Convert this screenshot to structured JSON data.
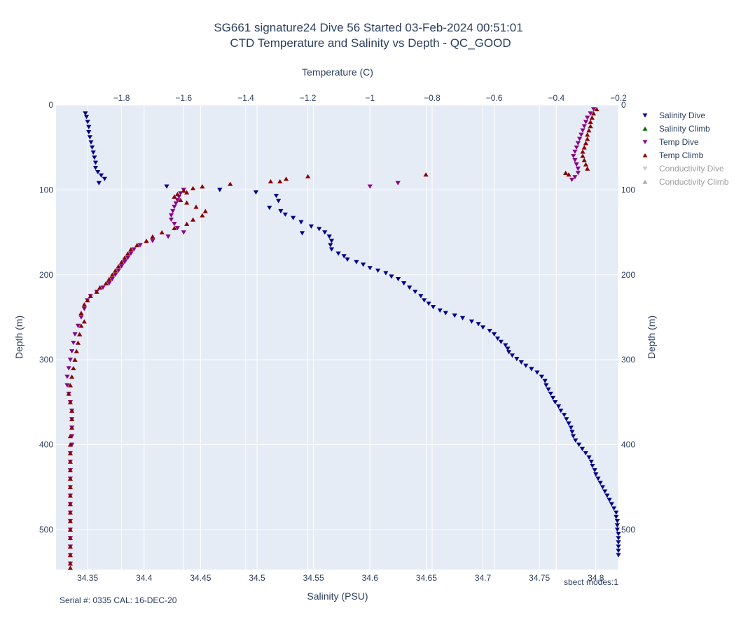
{
  "chart_data": {
    "type": "scatter",
    "title_line1": "SG661 signature24 Dive 56 Started 03-Feb-2024 00:51:01",
    "title_line2": "CTD Temperature and Salinity vs Depth - QC_GOOD",
    "xlabel": "Salinity (PSU)",
    "x2label": "Temperature (C)",
    "ylabel": "Depth (m)",
    "y2label": "Depth (m)",
    "xlim": [
      34.322,
      34.82
    ],
    "x2lim": [
      -2.011,
      -0.2
    ],
    "ylim": [
      547,
      0
    ],
    "x_ticks": [
      "34.35",
      "34.4",
      "34.45",
      "34.5",
      "34.55",
      "34.6",
      "34.65",
      "34.7",
      "34.75",
      "34.8"
    ],
    "x_tick_values": [
      34.35,
      34.4,
      34.45,
      34.5,
      34.55,
      34.6,
      34.65,
      34.7,
      34.75,
      34.8
    ],
    "x2_ticks": [
      "−1.8",
      "−1.6",
      "−1.4",
      "−1.2",
      "−1",
      "−0.8",
      "−0.6",
      "−0.4",
      "−0.2"
    ],
    "x2_tick_values": [
      -1.8,
      -1.6,
      -1.4,
      -1.2,
      -1.0,
      -0.8,
      -0.6,
      -0.4,
      -0.2
    ],
    "y_ticks": [
      "0",
      "100",
      "200",
      "300",
      "400",
      "500"
    ],
    "y_tick_values": [
      0,
      100,
      200,
      300,
      400,
      500
    ],
    "grid": true,
    "legend_position": "right",
    "legend": [
      {
        "name": "Salinity Dive",
        "color": "#00008b",
        "marker": "triangle-down",
        "hidden": false
      },
      {
        "name": "Salinity Climb",
        "color": "#006400",
        "marker": "triangle-up",
        "hidden": false
      },
      {
        "name": "Temp Dive",
        "color": "#8b008b",
        "marker": "triangle-down",
        "hidden": false
      },
      {
        "name": "Temp Climb",
        "color": "#8b0000",
        "marker": "triangle-up",
        "hidden": false
      },
      {
        "name": "Conductivity Dive",
        "color": "#c8c8c8",
        "marker": "triangle-down",
        "hidden": true
      },
      {
        "name": "Conductivity Climb",
        "color": "#aaaaaa",
        "marker": "triangle-up",
        "hidden": true
      }
    ],
    "series": [
      {
        "name": "Salinity Dive",
        "axis": "x",
        "color": "#00008b",
        "marker": "triangle-down",
        "points": [
          [
            34.348,
            10
          ],
          [
            34.349,
            14
          ],
          [
            34.35,
            20
          ],
          [
            34.351,
            26
          ],
          [
            34.351,
            32
          ],
          [
            34.352,
            38
          ],
          [
            34.353,
            44
          ],
          [
            34.354,
            50
          ],
          [
            34.355,
            56
          ],
          [
            34.356,
            62
          ],
          [
            34.357,
            68
          ],
          [
            34.357,
            74
          ],
          [
            34.359,
            79
          ],
          [
            34.362,
            83
          ],
          [
            34.365,
            87
          ],
          [
            34.36,
            92
          ],
          [
            34.42,
            96
          ],
          [
            34.467,
            100
          ],
          [
            34.499,
            103
          ],
          [
            34.517,
            107
          ],
          [
            34.519,
            113
          ],
          [
            34.511,
            121
          ],
          [
            34.521,
            125
          ],
          [
            34.525,
            129
          ],
          [
            34.532,
            133
          ],
          [
            34.539,
            138
          ],
          [
            34.548,
            143
          ],
          [
            34.555,
            146
          ],
          [
            34.54,
            151
          ],
          [
            34.56,
            150
          ],
          [
            34.564,
            155
          ],
          [
            34.566,
            160
          ],
          [
            34.565,
            165
          ],
          [
            34.566,
            170
          ],
          [
            34.572,
            175
          ],
          [
            34.577,
            178
          ],
          [
            34.58,
            182
          ],
          [
            34.588,
            185
          ],
          [
            34.594,
            188
          ],
          [
            34.6,
            192
          ],
          [
            34.607,
            195
          ],
          [
            34.614,
            198
          ],
          [
            34.619,
            202
          ],
          [
            34.625,
            205
          ],
          [
            34.63,
            210
          ],
          [
            34.635,
            215
          ],
          [
            34.64,
            220
          ],
          [
            34.645,
            225
          ],
          [
            34.648,
            230
          ],
          [
            34.652,
            234
          ],
          [
            34.656,
            238
          ],
          [
            34.662,
            242
          ],
          [
            34.667,
            245
          ],
          [
            34.675,
            248
          ],
          [
            34.682,
            251
          ],
          [
            34.69,
            255
          ],
          [
            34.696,
            258
          ],
          [
            34.7,
            262
          ],
          [
            34.706,
            266
          ],
          [
            34.71,
            270
          ],
          [
            34.713,
            275
          ],
          [
            34.716,
            279
          ],
          [
            34.72,
            283
          ],
          [
            34.722,
            287
          ],
          [
            34.723,
            291
          ],
          [
            34.726,
            295
          ],
          [
            34.73,
            299
          ],
          [
            34.734,
            303
          ],
          [
            34.738,
            307
          ],
          [
            34.743,
            311
          ],
          [
            34.748,
            315
          ],
          [
            34.752,
            320
          ],
          [
            34.755,
            325
          ],
          [
            34.756,
            330
          ],
          [
            34.758,
            335
          ],
          [
            34.76,
            340
          ],
          [
            34.762,
            345
          ],
          [
            34.764,
            350
          ],
          [
            34.767,
            355
          ],
          [
            34.769,
            360
          ],
          [
            34.772,
            365
          ],
          [
            34.774,
            370
          ],
          [
            34.776,
            375
          ],
          [
            34.778,
            380
          ],
          [
            34.779,
            385
          ],
          [
            34.78,
            390
          ],
          [
            34.782,
            395
          ],
          [
            34.785,
            400
          ],
          [
            34.788,
            405
          ],
          [
            34.791,
            410
          ],
          [
            34.794,
            415
          ],
          [
            34.796,
            420
          ],
          [
            34.797,
            425
          ],
          [
            34.799,
            430
          ],
          [
            34.8,
            435
          ],
          [
            34.802,
            440
          ],
          [
            34.804,
            445
          ],
          [
            34.806,
            450
          ],
          [
            34.808,
            455
          ],
          [
            34.81,
            460
          ],
          [
            34.812,
            465
          ],
          [
            34.814,
            470
          ],
          [
            34.816,
            475
          ],
          [
            34.818,
            480
          ],
          [
            34.818,
            485
          ],
          [
            34.819,
            490
          ],
          [
            34.819,
            495
          ],
          [
            34.819,
            500
          ],
          [
            34.82,
            505
          ],
          [
            34.82,
            510
          ],
          [
            34.82,
            515
          ],
          [
            34.82,
            520
          ],
          [
            34.82,
            525
          ],
          [
            34.82,
            530
          ]
        ]
      },
      {
        "name": "Temp Dive",
        "axis": "x2",
        "color": "#8b008b",
        "marker": "triangle-down",
        "points": [
          [
            -0.28,
            5
          ],
          [
            -0.29,
            10
          ],
          [
            -0.3,
            15
          ],
          [
            -0.305,
            20
          ],
          [
            -0.31,
            25
          ],
          [
            -0.315,
            30
          ],
          [
            -0.32,
            35
          ],
          [
            -0.325,
            40
          ],
          [
            -0.33,
            45
          ],
          [
            -0.335,
            50
          ],
          [
            -0.34,
            55
          ],
          [
            -0.345,
            60
          ],
          [
            -0.34,
            65
          ],
          [
            -0.335,
            70
          ],
          [
            -0.33,
            75
          ],
          [
            -0.33,
            80
          ],
          [
            -0.34,
            85
          ],
          [
            -0.35,
            88
          ],
          [
            -0.91,
            92
          ],
          [
            -1.0,
            96
          ],
          [
            -1.6,
            100
          ],
          [
            -1.61,
            104
          ],
          [
            -1.615,
            108
          ],
          [
            -1.62,
            112
          ],
          [
            -1.625,
            116
          ],
          [
            -1.63,
            120
          ],
          [
            -1.635,
            125
          ],
          [
            -1.64,
            130
          ],
          [
            -1.64,
            135
          ],
          [
            -1.63,
            140
          ],
          [
            -1.62,
            145
          ],
          [
            -1.6,
            150
          ],
          [
            -1.65,
            155
          ],
          [
            -1.7,
            160
          ],
          [
            -1.74,
            165
          ],
          [
            -1.76,
            170
          ],
          [
            -1.77,
            175
          ],
          [
            -1.78,
            180
          ],
          [
            -1.79,
            185
          ],
          [
            -1.8,
            190
          ],
          [
            -1.81,
            195
          ],
          [
            -1.82,
            200
          ],
          [
            -1.83,
            205
          ],
          [
            -1.84,
            210
          ],
          [
            -1.86,
            215
          ],
          [
            -1.88,
            220
          ],
          [
            -1.9,
            225
          ],
          [
            -1.91,
            230
          ],
          [
            -1.92,
            240
          ],
          [
            -1.93,
            250
          ],
          [
            -1.94,
            260
          ],
          [
            -1.95,
            270
          ],
          [
            -1.955,
            280
          ],
          [
            -1.96,
            290
          ],
          [
            -1.965,
            300
          ],
          [
            -1.97,
            310
          ],
          [
            -1.975,
            320
          ],
          [
            -1.975,
            330
          ],
          [
            -1.97,
            340
          ],
          [
            -1.965,
            350
          ],
          [
            -1.96,
            360
          ],
          [
            -1.96,
            370
          ],
          [
            -1.96,
            380
          ],
          [
            -1.96,
            390
          ],
          [
            -1.96,
            400
          ],
          [
            -1.965,
            410
          ],
          [
            -1.965,
            420
          ],
          [
            -1.965,
            430
          ],
          [
            -1.965,
            440
          ],
          [
            -1.965,
            450
          ],
          [
            -1.965,
            460
          ],
          [
            -1.965,
            470
          ],
          [
            -1.965,
            480
          ],
          [
            -1.965,
            490
          ],
          [
            -1.965,
            500
          ],
          [
            -1.965,
            510
          ],
          [
            -1.965,
            520
          ],
          [
            -1.965,
            530
          ],
          [
            -1.965,
            540
          ]
        ]
      },
      {
        "name": "Temp Climb",
        "axis": "x2",
        "color": "#8b0000",
        "marker": "triangle-up",
        "points": [
          [
            -0.27,
            5
          ],
          [
            -0.28,
            10
          ],
          [
            -0.285,
            15
          ],
          [
            -0.29,
            20
          ],
          [
            -0.29,
            25
          ],
          [
            -0.295,
            30
          ],
          [
            -0.3,
            35
          ],
          [
            -0.3,
            40
          ],
          [
            -0.305,
            45
          ],
          [
            -0.31,
            50
          ],
          [
            -0.315,
            55
          ],
          [
            -0.315,
            60
          ],
          [
            -0.31,
            65
          ],
          [
            -0.305,
            70
          ],
          [
            -0.3,
            75
          ],
          [
            -0.37,
            80
          ],
          [
            -0.36,
            82
          ],
          [
            -0.82,
            82
          ],
          [
            -1.2,
            84
          ],
          [
            -1.27,
            87
          ],
          [
            -1.32,
            90
          ],
          [
            -1.29,
            90
          ],
          [
            -1.45,
            93
          ],
          [
            -1.54,
            96
          ],
          [
            -1.57,
            98
          ],
          [
            -1.6,
            101
          ],
          [
            -1.59,
            103
          ],
          [
            -1.62,
            105
          ],
          [
            -1.63,
            108
          ],
          [
            -1.61,
            112
          ],
          [
            -1.59,
            115
          ],
          [
            -1.56,
            120
          ],
          [
            -1.53,
            125
          ],
          [
            -1.54,
            130
          ],
          [
            -1.57,
            135
          ],
          [
            -1.59,
            140
          ],
          [
            -1.63,
            145
          ],
          [
            -1.67,
            150
          ],
          [
            -1.7,
            155
          ],
          [
            -1.72,
            160
          ],
          [
            -1.75,
            165
          ],
          [
            -1.77,
            170
          ],
          [
            -1.78,
            175
          ],
          [
            -1.79,
            180
          ],
          [
            -1.8,
            185
          ],
          [
            -1.81,
            190
          ],
          [
            -1.82,
            195
          ],
          [
            -1.83,
            200
          ],
          [
            -1.84,
            205
          ],
          [
            -1.85,
            210
          ],
          [
            -1.87,
            215
          ],
          [
            -1.88,
            220
          ],
          [
            -1.9,
            225
          ],
          [
            -1.91,
            230
          ],
          [
            -1.92,
            235
          ],
          [
            -1.93,
            245
          ],
          [
            -1.92,
            255
          ],
          [
            -1.93,
            260
          ],
          [
            -1.935,
            270
          ],
          [
            -1.94,
            280
          ],
          [
            -1.945,
            290
          ],
          [
            -1.95,
            300
          ],
          [
            -1.955,
            310
          ],
          [
            -1.96,
            320
          ],
          [
            -1.965,
            330
          ],
          [
            -1.97,
            340
          ],
          [
            -1.965,
            350
          ],
          [
            -1.96,
            360
          ],
          [
            -1.96,
            370
          ],
          [
            -1.96,
            380
          ],
          [
            -1.965,
            390
          ],
          [
            -1.965,
            400
          ],
          [
            -1.965,
            410
          ],
          [
            -1.965,
            420
          ],
          [
            -1.965,
            430
          ],
          [
            -1.965,
            440
          ],
          [
            -1.965,
            450
          ],
          [
            -1.965,
            460
          ],
          [
            -1.965,
            470
          ],
          [
            -1.965,
            480
          ],
          [
            -1.965,
            490
          ],
          [
            -1.965,
            500
          ],
          [
            -1.965,
            510
          ],
          [
            -1.965,
            520
          ],
          [
            -1.965,
            530
          ],
          [
            -1.965,
            540
          ],
          [
            -1.965,
            545
          ]
        ]
      }
    ]
  },
  "footer": {
    "serial_cal": "Serial #: 0335  CAL: 16-DEC-20",
    "modes": "sbect modes:1"
  }
}
